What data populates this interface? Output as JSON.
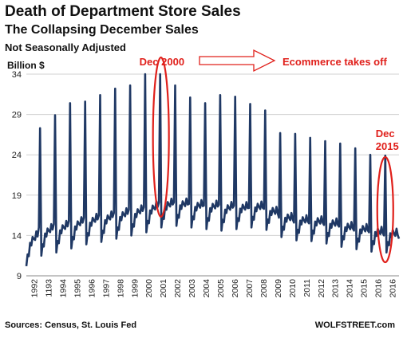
{
  "header": {
    "title": "Death of Department Store Sales",
    "subtitle": "The Collapsing December Sales",
    "note": "Not Seasonally Adjusted"
  },
  "footer": {
    "source": "Sources: Census, St. Louis Fed",
    "brand": "WOLFSTREET.com"
  },
  "colors": {
    "line": "#1f3864",
    "annotation": "#e0201b",
    "arrow": "#e0201b",
    "grid": "#d0d0d0"
  },
  "chart_data": {
    "type": "line",
    "title": "Death of Department Store Sales",
    "subtitle": "The Collapsing December Sales",
    "ylabel": "Billion $",
    "xlabel": "",
    "ylim": [
      9,
      34
    ],
    "yticks": [
      9,
      14,
      19,
      24,
      29,
      34
    ],
    "grid": true,
    "x_tick_labels": [
      "1992",
      "1193",
      "1994",
      "1995",
      "1996",
      "1997",
      "1998",
      "1999",
      "2000",
      "2001",
      "2002",
      "2003",
      "2004",
      "2005",
      "2006",
      "2007",
      "2008",
      "2009",
      "2010",
      "2011",
      "2012",
      "2013",
      "2014",
      "2015",
      "2016",
      "2016"
    ],
    "series": [
      {
        "frequency": "monthly",
        "start": "1992-01",
        "dec_peaks": [
          {
            "year": 1992,
            "value": 27.3
          },
          {
            "year": 1993,
            "value": 28.9
          },
          {
            "year": 1994,
            "value": 30.4
          },
          {
            "year": 1995,
            "value": 30.6
          },
          {
            "year": 1996,
            "value": 31.4
          },
          {
            "year": 1997,
            "value": 32.2
          },
          {
            "year": 1998,
            "value": 32.6
          },
          {
            "year": 1999,
            "value": 34.0
          },
          {
            "year": 2000,
            "value": 34.0
          },
          {
            "year": 2001,
            "value": 32.6
          },
          {
            "year": 2002,
            "value": 31.1
          },
          {
            "year": 2003,
            "value": 30.4
          },
          {
            "year": 2004,
            "value": 31.4
          },
          {
            "year": 2005,
            "value": 31.2
          },
          {
            "year": 2006,
            "value": 30.3
          },
          {
            "year": 2007,
            "value": 29.5
          },
          {
            "year": 2008,
            "value": 26.7
          },
          {
            "year": 2009,
            "value": 26.6
          },
          {
            "year": 2010,
            "value": 26.1
          },
          {
            "year": 2011,
            "value": 25.7
          },
          {
            "year": 2012,
            "value": 25.4
          },
          {
            "year": 2013,
            "value": 24.8
          },
          {
            "year": 2014,
            "value": 24.0
          },
          {
            "year": 2015,
            "value": 23.9
          }
        ],
        "jan_values": [
          10.2,
          11.5,
          11.9,
          12.4,
          12.9,
          13.2,
          13.6,
          14.0,
          14.4,
          15.0,
          15.2,
          15.0,
          14.8,
          14.6,
          14.8,
          15.0,
          14.7,
          13.8,
          13.4,
          13.3,
          13.0,
          12.6,
          12.3,
          12.0,
          11.9,
          11.4
        ],
        "nov_values": [
          15.0,
          15.4,
          15.8,
          16.2,
          16.5,
          16.8,
          17.2,
          17.5,
          18.1,
          18.1,
          17.9,
          17.7,
          17.8,
          17.7,
          17.4,
          17.3,
          16.2,
          15.6,
          15.5,
          15.3,
          15.1,
          14.6,
          14.4,
          14.0,
          13.6
        ],
        "end": "2016-10"
      }
    ],
    "annotations": [
      {
        "text": "Dec 2000",
        "target_year": 2000,
        "target_value": 34.0
      },
      {
        "text": "Ecommerce takes off",
        "arrow": "right"
      },
      {
        "text_lines": [
          "Dec",
          "2015"
        ],
        "target_year": 2015,
        "target_value": 23.9
      }
    ]
  }
}
